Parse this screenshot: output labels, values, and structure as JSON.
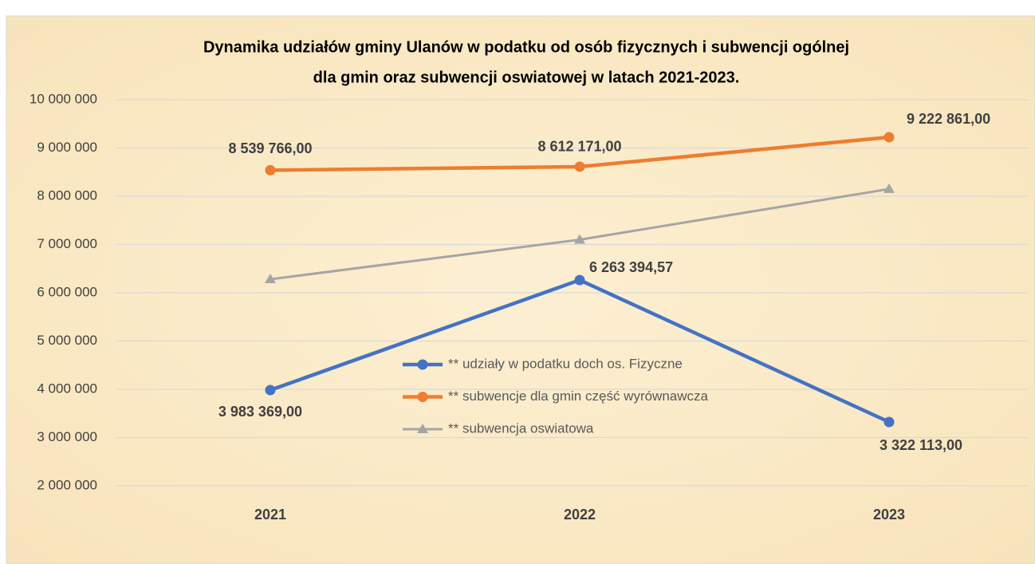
{
  "chart_data": {
    "type": "line",
    "title": [
      "Dynamika udziałów gminy Ulanów w podatku od osób fizycznych i subwencji ogólnej",
      "dla gmin oraz subwencji oswiatowej w latach 2021-2023."
    ],
    "categories": [
      "2021",
      "2022",
      "2023"
    ],
    "series": [
      {
        "name": "** udziały w podatku doch os. Fizyczne",
        "color": "#4472c4",
        "marker": "circle",
        "values": [
          3983369,
          6263394.57,
          3322113
        ],
        "value_labels": [
          "3 983 369,00",
          "6 263 394,57",
          "3 322 113,00"
        ]
      },
      {
        "name": "** subwencje dla gmin część wyrównawcza",
        "color": "#ed7d31",
        "marker": "circle",
        "values": [
          8539766,
          8612171,
          9222861
        ],
        "value_labels": [
          "8 539 766,00",
          "8 612 171,00",
          "9 222 861,00"
        ]
      },
      {
        "name": "** subwencja oswiatowa",
        "color": "#a5a5a5",
        "marker": "triangle",
        "values": [
          6280000,
          7100000,
          8150000
        ]
      }
    ],
    "ylim": [
      2000000,
      10000000
    ],
    "yticks": [
      {
        "value": 2000000,
        "label": "2 000 000"
      },
      {
        "value": 3000000,
        "label": "3 000 000"
      },
      {
        "value": 4000000,
        "label": "4 000 000"
      },
      {
        "value": 5000000,
        "label": "5 000 000"
      },
      {
        "value": 6000000,
        "label": "6 000 000"
      },
      {
        "value": 7000000,
        "label": "7 000 000"
      },
      {
        "value": 8000000,
        "label": "8 000 000"
      },
      {
        "value": 9000000,
        "label": "9 000 000"
      },
      {
        "value": 10000000,
        "label": "10 000 000"
      }
    ],
    "grid": true
  }
}
